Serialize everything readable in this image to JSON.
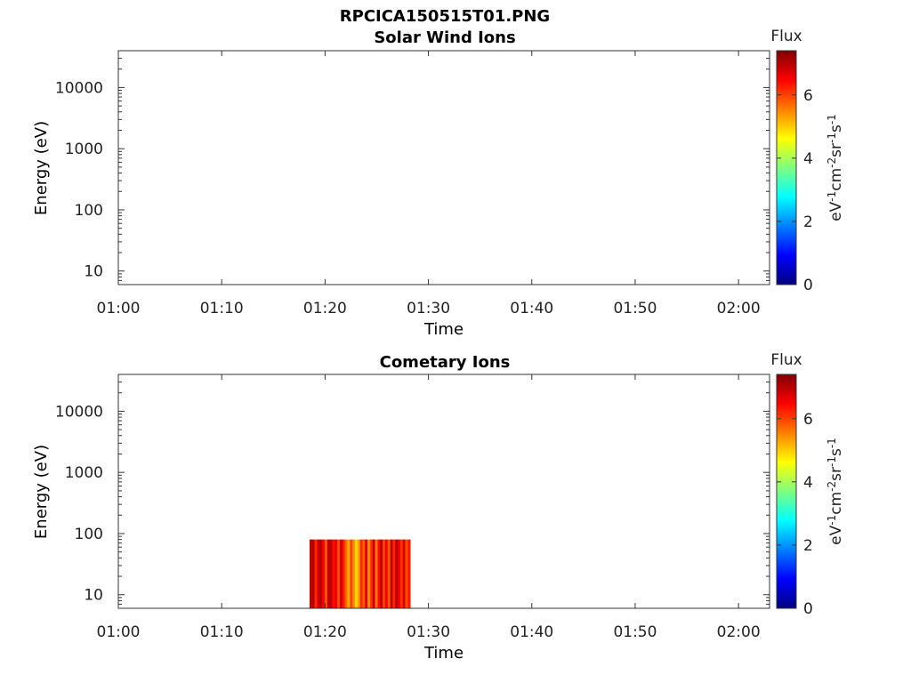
{
  "figure": {
    "title": "RPCICA150515T01.PNG"
  },
  "colormap": [
    "#00007f",
    "#0000ff",
    "#007fff",
    "#00ffff",
    "#7fff7f",
    "#ffff00",
    "#ff7f00",
    "#ff0000",
    "#7f0000"
  ],
  "chart_data": [
    {
      "type": "heatmap",
      "title": "Solar Wind Ions",
      "xlabel": "Time",
      "ylabel": "Energy (eV)",
      "xticks": [
        "01:00",
        "01:10",
        "01:20",
        "01:30",
        "01:40",
        "01:50",
        "02:00"
      ],
      "xlim": [
        "01:00",
        "02:03"
      ],
      "yticks": [
        "10",
        "100",
        "1000",
        "10000"
      ],
      "yscale": "log",
      "ylim": [
        6,
        40000
      ],
      "colorbar": {
        "label": "Flux",
        "unit_base": [
          "eV",
          "cm",
          "sr",
          "s"
        ],
        "unit_exponents": [
          "-1",
          "-2",
          "-1",
          "-1"
        ],
        "ticks": [
          "0",
          "2",
          "4",
          "6"
        ],
        "range": [
          0,
          7.4
        ]
      },
      "data": []
    },
    {
      "type": "heatmap",
      "title": "Cometary Ions",
      "xlabel": "Time",
      "ylabel": "Energy (eV)",
      "xticks": [
        "01:00",
        "01:10",
        "01:20",
        "01:30",
        "01:40",
        "01:50",
        "02:00"
      ],
      "xlim": [
        "01:00",
        "02:03"
      ],
      "yticks": [
        "10",
        "100",
        "1000",
        "10000"
      ],
      "yscale": "log",
      "ylim": [
        6,
        40000
      ],
      "colorbar": {
        "label": "Flux",
        "unit_base": [
          "eV",
          "cm",
          "sr",
          "s"
        ],
        "unit_exponents": [
          "-1",
          "-2",
          "-1",
          "-1"
        ],
        "ticks": [
          "0",
          "2",
          "4",
          "6"
        ],
        "range": [
          0,
          7.4
        ]
      },
      "data": [
        {
          "t_start": "01:18:30",
          "t_end": "01:28:15",
          "e_min": 6,
          "e_max": 80,
          "flux_columns": [
            6.9,
            7.0,
            6.2,
            6.8,
            7.0,
            6.5,
            5.8,
            6.9,
            7.0,
            6.4,
            6.6,
            5.9,
            6.8,
            6.3,
            5.7,
            5.2,
            6.0,
            5.5,
            4.9,
            5.3,
            6.2,
            5.8,
            6.7,
            5.4,
            6.1,
            6.9,
            5.6,
            6.4,
            7.0,
            6.0,
            6.5,
            5.8,
            6.9,
            6.2,
            7.0,
            6.6,
            6.1,
            6.8,
            5.9,
            6.3
          ]
        }
      ]
    }
  ]
}
